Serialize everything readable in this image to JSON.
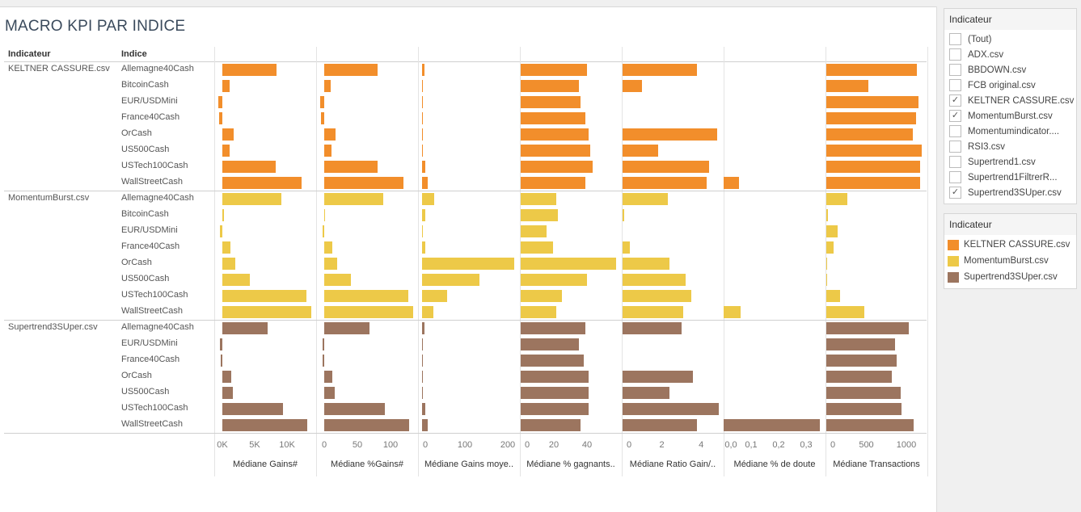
{
  "title": "MACRO KPI PAR INDICE",
  "headers": {
    "indicateur": "Indicateur",
    "indice": "Indice"
  },
  "colors": {
    "KELTNER CASSURE.csv": "#f28e2b",
    "MomentumBurst.csv": "#edc948",
    "Supertrend3SUper.csv": "#9c755f"
  },
  "measures": [
    {
      "title": "Médiane Gains#",
      "ticks": [
        {
          "v": 0,
          "label": "0K"
        },
        {
          "v": 5000,
          "label": "5K"
        },
        {
          "v": 10000,
          "label": "10K"
        }
      ]
    },
    {
      "title": "Médiane %Gains#",
      "ticks": [
        {
          "v": 0,
          "label": "0"
        },
        {
          "v": 50,
          "label": "50"
        },
        {
          "v": 100,
          "label": "100"
        }
      ]
    },
    {
      "title": "Médiane Gains moye..",
      "ticks": [
        {
          "v": 0,
          "label": "0"
        },
        {
          "v": 100,
          "label": "100"
        },
        {
          "v": 200,
          "label": "200"
        }
      ]
    },
    {
      "title": "Médiane % gagnants..",
      "ticks": [
        {
          "v": 0,
          "label": "0"
        },
        {
          "v": 20,
          "label": "20"
        },
        {
          "v": 40,
          "label": "40"
        }
      ]
    },
    {
      "title": "Médiane Ratio Gain/..",
      "ticks": [
        {
          "v": 0,
          "label": "0"
        },
        {
          "v": 2,
          "label": "2"
        },
        {
          "v": 4,
          "label": "4"
        }
      ]
    },
    {
      "title": "Médiane % de doute",
      "ticks": [
        {
          "v": 0,
          "label": "0,0"
        },
        {
          "v": 0.1,
          "label": "0,1"
        },
        {
          "v": 0.2,
          "label": "0,2"
        },
        {
          "v": 0.3,
          "label": "0,3"
        }
      ]
    },
    {
      "title": "Médiane Transactions",
      "ticks": [
        {
          "v": 0,
          "label": "0"
        },
        {
          "v": 500,
          "label": "500"
        },
        {
          "v": 1000,
          "label": "1000"
        }
      ]
    }
  ],
  "groups": [
    {
      "name": "KELTNER CASSURE.csv",
      "rows": [
        {
          "indice": "Allemagne40Cash",
          "values": [
            8400,
            80,
            5,
            40,
            3.8,
            0,
            1130
          ]
        },
        {
          "indice": "BitcoinCash",
          "values": [
            1100,
            10,
            1,
            35,
            1.0,
            0,
            530
          ]
        },
        {
          "indice": "EUR/USDMini",
          "values": [
            -600,
            -6,
            0.5,
            36,
            0,
            0,
            1150
          ]
        },
        {
          "indice": "France40Cash",
          "values": [
            -500,
            -5,
            0.5,
            39,
            0,
            0,
            1120
          ]
        },
        {
          "indice": "OrCash",
          "values": [
            1700,
            17,
            0.5,
            41,
            4.8,
            0,
            1080
          ]
        },
        {
          "indice": "US500Cash",
          "values": [
            1100,
            11,
            0.5,
            42,
            1.8,
            0,
            1190
          ]
        },
        {
          "indice": "USTech100Cash",
          "values": [
            8200,
            80,
            7,
            43.5,
            4.4,
            0,
            1170
          ]
        },
        {
          "indice": "WallStreetCash",
          "values": [
            12200,
            120,
            13,
            39,
            4.3,
            0.055,
            1170
          ]
        }
      ]
    },
    {
      "name": "MomentumBurst.csv",
      "rows": [
        {
          "indice": "Allemagne40Cash",
          "values": [
            9100,
            89,
            28,
            21.5,
            2.3,
            0,
            260
          ]
        },
        {
          "indice": "BitcoinCash",
          "values": [
            200,
            0.5,
            7,
            22.5,
            0.08,
            0,
            20
          ]
        },
        {
          "indice": "EUR/USDMini",
          "values": [
            -400,
            -3,
            0.5,
            15.6,
            0,
            0,
            140
          ]
        },
        {
          "indice": "France40Cash",
          "values": [
            1200,
            12,
            7,
            19.5,
            0.37,
            0,
            90
          ]
        },
        {
          "indice": "OrCash",
          "values": [
            2000,
            19,
            215,
            57.5,
            2.4,
            0,
            8
          ]
        },
        {
          "indice": "US500Cash",
          "values": [
            4200,
            40,
            134,
            40,
            3.2,
            0,
            15
          ]
        },
        {
          "indice": "USTech100Cash",
          "values": [
            13000,
            127,
            58,
            25,
            3.5,
            0,
            170
          ]
        },
        {
          "indice": "WallStreetCash",
          "values": [
            13700,
            134,
            26,
            21.5,
            3.1,
            0.062,
            470
          ]
        }
      ]
    },
    {
      "name": "Supertrend3SUper.csv",
      "rows": [
        {
          "indice": "Allemagne40Cash",
          "values": [
            7000,
            68,
            5,
            39,
            3.0,
            0,
            1030
          ]
        },
        {
          "indice": "EUR/USDMini",
          "values": [
            -400,
            -3,
            0.5,
            35,
            0,
            0,
            860
          ]
        },
        {
          "indice": "France40Cash",
          "values": [
            -200,
            -2,
            0.5,
            38,
            0,
            0,
            880
          ]
        },
        {
          "indice": "OrCash",
          "values": [
            1400,
            12,
            0.5,
            41,
            3.6,
            0,
            820
          ]
        },
        {
          "indice": "US500Cash",
          "values": [
            1600,
            16,
            0.5,
            41,
            2.4,
            0,
            930
          ]
        },
        {
          "indice": "USTech100Cash",
          "values": [
            9400,
            91,
            7,
            41,
            4.9,
            0,
            940
          ]
        },
        {
          "indice": "WallStreetCash",
          "values": [
            13100,
            128,
            13,
            36,
            3.8,
            0.35,
            1090
          ]
        }
      ]
    }
  ],
  "filter": {
    "title": "Indicateur",
    "items": [
      {
        "label": "(Tout)",
        "checked": false
      },
      {
        "label": "ADX.csv",
        "checked": false
      },
      {
        "label": "BBDOWN.csv",
        "checked": false
      },
      {
        "label": "FCB original.csv",
        "checked": false
      },
      {
        "label": "KELTNER CASSURE.csv",
        "checked": true
      },
      {
        "label": "MomentumBurst.csv",
        "checked": true
      },
      {
        "label": "Momentumindicator....",
        "checked": false
      },
      {
        "label": "RSI3.csv",
        "checked": false
      },
      {
        "label": "Supertrend1.csv",
        "checked": false
      },
      {
        "label": "Supertrend1FiltrerR...",
        "checked": false
      },
      {
        "label": "Supertrend3SUper.csv",
        "checked": true
      }
    ]
  },
  "legend": {
    "title": "Indicateur",
    "items": [
      {
        "label": "KELTNER CASSURE.csv",
        "color": "#f28e2b"
      },
      {
        "label": "MomentumBurst.csv",
        "color": "#edc948"
      },
      {
        "label": "Supertrend3SUper.csv",
        "color": "#9c755f"
      }
    ]
  }
}
